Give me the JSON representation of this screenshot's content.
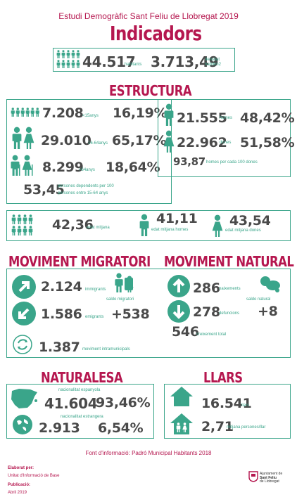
{
  "header": {
    "subtitle": "Estudi Demogràfic Sant Feliu de Llobregat 2019",
    "title": "Indicadors"
  },
  "colors": {
    "accent": "#3aa58a",
    "title": "#b5174f",
    "text": "#4a4a4a"
  },
  "summary": {
    "habitants": "44.517",
    "habitants_label": "habitants",
    "densitat": "3.713,49",
    "densitat_label1": "densitat",
    "densitat_label2": "hab/km2"
  },
  "estructura": {
    "title": "ESTRUCTURA",
    "age": [
      {
        "value": "7.208",
        "label": "<15anys",
        "pct": "16,19%"
      },
      {
        "value": "29.010",
        "label": "16-64anys",
        "pct": "65,17%"
      },
      {
        "value": "8.299",
        "label": ">64anys",
        "pct": "18,64%"
      }
    ],
    "dependents": {
      "value": "53,45",
      "label1": "persones dependents per 100",
      "label2": "persones entre 15-64 anys"
    },
    "sex": [
      {
        "value": "21.555",
        "label": "homes",
        "pct": "48,42%"
      },
      {
        "value": "22.962",
        "label": "dones",
        "pct": "51,58%"
      }
    ],
    "ratio": {
      "value": "93,87",
      "label": "homes per cada 100 dones"
    },
    "edat": [
      {
        "value": "42,36",
        "label": "edat mitjana"
      },
      {
        "value": "41,11",
        "label": "edat mitjana homes"
      },
      {
        "value": "43,54",
        "label": "edat mitjana dones"
      }
    ]
  },
  "migratori": {
    "title": "MOVIMENT MIGRATORI",
    "immigrants": "2.124",
    "immigrants_label": "immigrants",
    "emigrants": "1.586",
    "emigrants_label": "emigrants",
    "saldo_label": "saldo migratori",
    "saldo": "+538",
    "intra": "1.387",
    "intra_label": "moviment intramunicipals"
  },
  "natural": {
    "title": "MOVIMENT NATURAL",
    "naixements": "286",
    "naixements_label": "naixements",
    "defuncions": "278",
    "defuncions_label": "defuncions",
    "saldo_label": "saldo natural",
    "saldo": "+8"
  },
  "creixement": {
    "value": "546",
    "label": "creixement total"
  },
  "naturalesa": {
    "title": "NATURALESA",
    "esp_label": "nacionalitat espanyola",
    "esp": "41.604",
    "esp_pct": "93,46%",
    "ext_label": "nacionalitat estrangera",
    "ext": "2.913",
    "ext_pct": "6,54%"
  },
  "llars": {
    "title": "LLARS",
    "llars": "16.541",
    "llars_label": "llars",
    "mitjana": "2,71",
    "mitjana_label": "mitjana persones/llar"
  },
  "footer": {
    "font": "Font d'informació: Padró Municipal Habitants 2018",
    "elaborat_title": "Elaborat per:",
    "elaborat": "Unitat d'Informació de Base",
    "publicacio_title": "Publicació:",
    "publicacio": "Abril 2019",
    "logo1": "Ajuntament de",
    "logo2": "Sant Feliu",
    "logo3": "de Llobregat"
  },
  "icons": [
    "people-group-icon",
    "man-icon",
    "woman-icon",
    "couple-icon",
    "elderly-couple-icon",
    "arrow-up-right-icon",
    "arrow-down-left-icon",
    "cycle-icon",
    "travellers-icon",
    "arrow-up-icon",
    "arrow-down-icon",
    "baby-icon",
    "spain-map-icon",
    "globe-icon",
    "house-icon",
    "family-house-icon",
    "municipality-logo"
  ]
}
